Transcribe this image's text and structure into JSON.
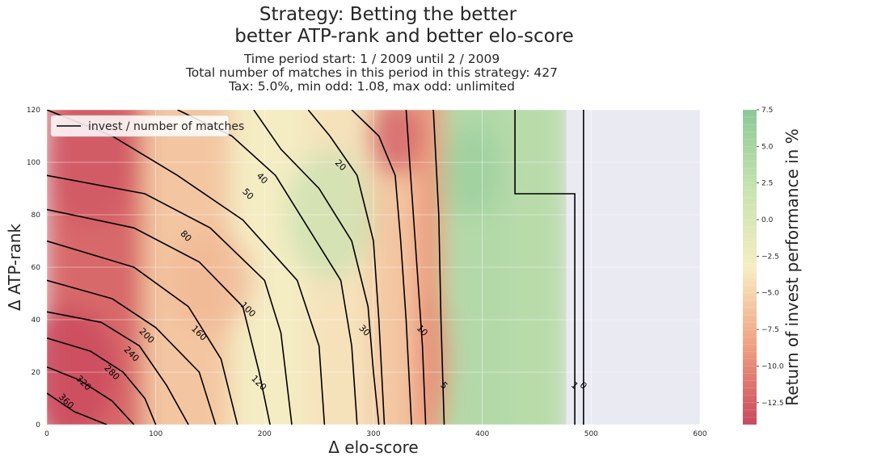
{
  "chart_data": {
    "type": "heatmap",
    "title": [
      "Strategy: Betting the better",
      "better ATP-rank and better elo-score"
    ],
    "subtitle": [
      "Time period start: 1 / 2009 until 2 / 2009",
      "Total number of matches in this period in this strategy: 427",
      "Tax: 5.0%, min odd: 1.08, max odd: unlimited"
    ],
    "xlabel": "Δ elo-score",
    "ylabel": "Δ ATP-rank",
    "colorbar_label": "Return of invest performance in %",
    "xlim": [
      0,
      600
    ],
    "ylim": [
      0,
      120
    ],
    "xticks": [
      "0",
      "100",
      "200",
      "300",
      "400",
      "500",
      "600"
    ],
    "yticks": [
      "0",
      "20",
      "40",
      "60",
      "80",
      "100",
      "120"
    ],
    "colorbar_range": [
      -14,
      7.5
    ],
    "colorbar_ticks": [
      "7.5",
      "5.0",
      "2.5",
      "0.0",
      "−2.5",
      "−5.0",
      "−7.5",
      "−10.0",
      "−12.5"
    ],
    "colorbar_tick_values": [
      7.5,
      5.0,
      2.5,
      0.0,
      -2.5,
      -5.0,
      -7.5,
      -10.0,
      -12.5
    ],
    "legend": {
      "label": "invest / number of matches",
      "placement": "upper-left"
    },
    "color_scale": [
      "#c9485e",
      "#f0a080",
      "#f6edc4",
      "#c8e2b0",
      "#8dc898"
    ],
    "heat_bands": [
      {
        "x": [
          0,
          90
        ],
        "value": -12
      },
      {
        "x": [
          90,
          170
        ],
        "value": -6
      },
      {
        "x": [
          170,
          240
        ],
        "value": -3
      },
      {
        "x": [
          240,
          300
        ],
        "value": -4
      },
      {
        "x": [
          300,
          340
        ],
        "value": -6
      },
      {
        "x": [
          340,
          365
        ],
        "value": -9
      },
      {
        "x": [
          365,
          430
        ],
        "value": 4
      },
      {
        "x": [
          430,
          477
        ],
        "value": 3.5
      }
    ],
    "heat_blobs": [
      {
        "x": 20,
        "y": 20,
        "rx": 45,
        "ry": 25,
        "value": -14
      },
      {
        "x": 40,
        "y": 100,
        "rx": 40,
        "ry": 25,
        "value": -13
      },
      {
        "x": 150,
        "y": 55,
        "rx": 40,
        "ry": 20,
        "value": -7
      },
      {
        "x": 320,
        "y": 110,
        "rx": 25,
        "ry": 15,
        "value": -13
      },
      {
        "x": 260,
        "y": 80,
        "rx": 40,
        "ry": 25,
        "value": 2
      },
      {
        "x": 390,
        "y": 97,
        "rx": 28,
        "ry": 18,
        "value": 6
      },
      {
        "x": 355,
        "y": 25,
        "rx": 15,
        "ry": 25,
        "value": -10
      }
    ],
    "no_data_region": {
      "x": [
        477,
        600
      ],
      "y": [
        0,
        120
      ]
    },
    "contour_lines": [
      {
        "label": "360",
        "points": [
          [
            0,
            12
          ],
          [
            25,
            5
          ],
          [
            55,
            0
          ]
        ],
        "label_at": [
          18,
          9
        ]
      },
      {
        "label": "320",
        "points": [
          [
            0,
            22
          ],
          [
            30,
            17
          ],
          [
            60,
            9
          ],
          [
            80,
            0
          ]
        ],
        "label_at": [
          34,
          16
        ]
      },
      {
        "label": "280",
        "points": [
          [
            0,
            33
          ],
          [
            40,
            28
          ],
          [
            70,
            20
          ],
          [
            90,
            10
          ],
          [
            100,
            0
          ]
        ],
        "label_at": [
          60,
          20
        ]
      },
      {
        "label": "240",
        "points": [
          [
            0,
            43
          ],
          [
            50,
            39
          ],
          [
            85,
            30
          ],
          [
            110,
            15
          ],
          [
            130,
            0
          ]
        ],
        "label_at": [
          78,
          27
        ]
      },
      {
        "label": "200",
        "points": [
          [
            0,
            55
          ],
          [
            60,
            48
          ],
          [
            100,
            37
          ],
          [
            140,
            20
          ],
          [
            155,
            0
          ]
        ],
        "label_at": [
          92,
          34
        ]
      },
      {
        "label": "160",
        "points": [
          [
            0,
            70
          ],
          [
            80,
            60
          ],
          [
            130,
            45
          ],
          [
            160,
            25
          ],
          [
            175,
            0
          ]
        ],
        "label_at": [
          140,
          35
        ]
      },
      {
        "label": "120",
        "points": [
          [
            0,
            82
          ],
          [
            80,
            75
          ],
          [
            140,
            62
          ],
          [
            180,
            45
          ],
          [
            195,
            20
          ],
          [
            205,
            0
          ]
        ],
        "label_at": [
          195,
          16
        ]
      },
      {
        "label": "100",
        "points": [
          [
            0,
            95
          ],
          [
            90,
            88
          ],
          [
            150,
            75
          ],
          [
            200,
            55
          ],
          [
            215,
            35
          ],
          [
            225,
            0
          ]
        ],
        "label_at": [
          185,
          44
        ]
      },
      {
        "label": "80",
        "points": [
          [
            0,
            120
          ],
          [
            60,
            110
          ],
          [
            120,
            95
          ],
          [
            180,
            78
          ],
          [
            230,
            55
          ],
          [
            250,
            30
          ],
          [
            255,
            0
          ]
        ],
        "label_at": [
          128,
          72
        ]
      },
      {
        "label": "50",
        "points": [
          [
            120,
            120
          ],
          [
            170,
            110
          ],
          [
            210,
            95
          ],
          [
            240,
            75
          ],
          [
            270,
            55
          ],
          [
            280,
            30
          ],
          [
            285,
            0
          ]
        ],
        "label_at": [
          185,
          88
        ]
      },
      {
        "label": "40",
        "points": [
          [
            190,
            120
          ],
          [
            215,
            105
          ],
          [
            250,
            90
          ],
          [
            280,
            70
          ],
          [
            295,
            45
          ],
          [
            300,
            20
          ],
          [
            305,
            0
          ]
        ],
        "label_at": [
          198,
          94
        ]
      },
      {
        "label": "30",
        "points": [
          [
            240,
            120
          ],
          [
            260,
            110
          ],
          [
            285,
            95
          ],
          [
            300,
            70
          ],
          [
            305,
            40
          ],
          [
            310,
            0
          ]
        ],
        "label_at": [
          292,
          36
        ]
      },
      {
        "label": "20",
        "points": [
          [
            280,
            120
          ],
          [
            305,
            110
          ],
          [
            320,
            95
          ],
          [
            325,
            70
          ],
          [
            330,
            40
          ],
          [
            335,
            0
          ]
        ],
        "label_at": [
          270,
          99
        ]
      },
      {
        "label": "10",
        "points": [
          [
            330,
            120
          ],
          [
            335,
            90
          ],
          [
            340,
            60
          ],
          [
            345,
            30
          ],
          [
            348,
            0
          ]
        ],
        "label_at": [
          345,
          36
        ]
      },
      {
        "label": "5",
        "points": [
          [
            355,
            120
          ],
          [
            360,
            80
          ],
          [
            362,
            40
          ],
          [
            365,
            0
          ]
        ],
        "label_at": [
          365,
          15
        ]
      },
      {
        "label": "1",
        "points": [
          [
            430,
            120
          ],
          [
            430,
            88
          ],
          [
            485,
            88
          ],
          [
            485,
            0
          ]
        ],
        "label_at": [
          485,
          15
        ]
      },
      {
        "label": "0",
        "points": [
          [
            493,
            120
          ],
          [
            493,
            0
          ]
        ],
        "label_at": [
          493,
          15
        ]
      }
    ]
  }
}
